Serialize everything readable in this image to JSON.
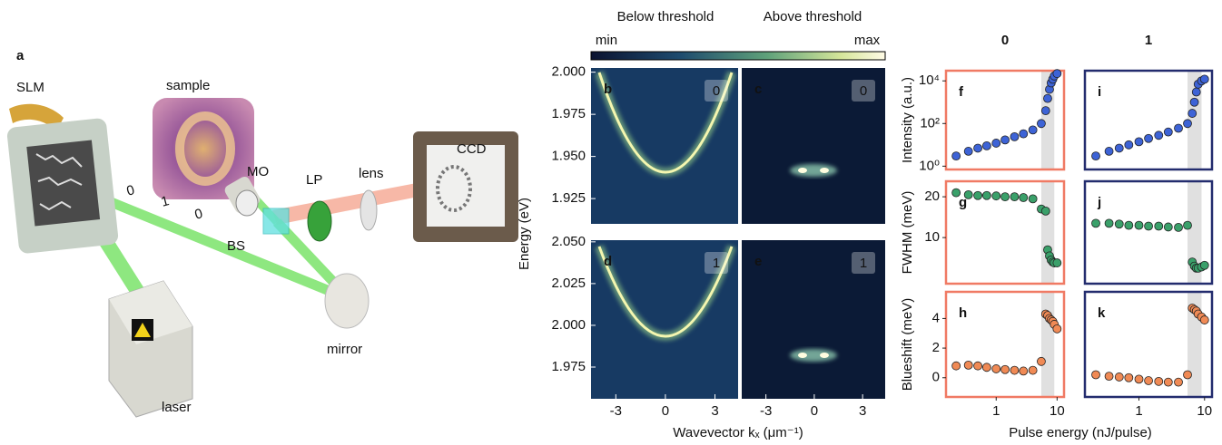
{
  "illustration": {
    "panel_label": "a",
    "labels": [
      "SLM",
      "sample",
      "MO",
      "LP",
      "lens",
      "CCD",
      "BS",
      "mirror",
      "laser"
    ],
    "digits": [
      "0",
      "1",
      "0"
    ]
  },
  "colorbar": {
    "left_title": "Below threshold",
    "right_title": "Above threshold",
    "min_label": "min",
    "max_label": "max"
  },
  "shared": {
    "energy_label": "Energy (eV)",
    "wavevector_label": "Wavevector kₓ (μm⁻¹)",
    "pulse_label": "Pulse energy (nJ/pulse)",
    "column_titles": [
      {
        "text": "0",
        "color": "#f07a64"
      },
      {
        "text": "1",
        "color": "#232c6e"
      }
    ]
  },
  "chart_data": [
    {
      "type": "heatmap",
      "panel": "b",
      "badge": "0",
      "badge_color": "#f07a64",
      "xlim": [
        -4.5,
        4.4
      ],
      "ylim": [
        1.91,
        2.0025
      ],
      "yticks": [
        {
          "value": 2.0,
          "label": "2.000"
        },
        {
          "value": 1.975,
          "label": "1.975"
        },
        {
          "value": 1.95,
          "label": "1.950"
        },
        {
          "value": 1.925,
          "label": "1.925"
        }
      ]
    },
    {
      "type": "heatmap",
      "panel": "c",
      "badge": "0",
      "badge_color": "#f07a64"
    },
    {
      "type": "heatmap",
      "panel": "d",
      "badge": "1",
      "badge_color": "#232c6e",
      "xlim": [
        -4.5,
        4.4
      ],
      "ylim": [
        1.956,
        2.051
      ],
      "yticks": [
        {
          "value": 2.05,
          "label": "2.050"
        },
        {
          "value": 2.025,
          "label": "2.025"
        },
        {
          "value": 2.0,
          "label": "2.000"
        },
        {
          "value": 1.975,
          "label": "1.975"
        }
      ],
      "xticks": [
        -3,
        0,
        3
      ]
    },
    {
      "type": "heatmap",
      "panel": "e",
      "badge": "1",
      "badge_color": "#232c6e",
      "xlim": [
        -4.5,
        4.4
      ],
      "xticks": [
        -3,
        0,
        3
      ]
    },
    {
      "type": "scatter",
      "panel": "f",
      "frame_color": "#f07a64",
      "color": "#3d63d6",
      "xscale": "log",
      "yscale": "log",
      "xlim": [
        0.15,
        13
      ],
      "ylim": [
        0.7,
        30000
      ],
      "shade": [
        5.5,
        9
      ],
      "ylabel": "Intensity (a.u.)",
      "yticks": [
        {
          "value": 1,
          "label": "10⁰"
        },
        {
          "value": 100,
          "label": "10²"
        },
        {
          "value": 10000,
          "label": "10⁴"
        }
      ],
      "x": [
        0.22,
        0.35,
        0.5,
        0.7,
        1.0,
        1.4,
        2.0,
        2.8,
        4.0,
        5.5,
        6.5,
        7.0,
        7.5,
        8.0,
        8.5,
        9.0,
        10.0
      ],
      "values": [
        3,
        5,
        7,
        9,
        12,
        17,
        24,
        33,
        50,
        100,
        400,
        1500,
        4000,
        8000,
        12000,
        17000,
        22000
      ]
    },
    {
      "type": "scatter",
      "panel": "g",
      "frame_color": "#f07a64",
      "color": "#3aa06a",
      "xscale": "log",
      "xlim": [
        0.15,
        13
      ],
      "ylim": [
        -1.3,
        23.8
      ],
      "shade": [
        5.5,
        9
      ],
      "ylabel": "FWHM (meV)",
      "yticks": [
        10,
        20
      ],
      "x": [
        0.22,
        0.35,
        0.5,
        0.7,
        1.0,
        1.4,
        2.0,
        2.8,
        4.0,
        5.5,
        6.5,
        7.0,
        7.5,
        8.0,
        8.5,
        9.0,
        10.0
      ],
      "values": [
        21,
        20.5,
        20.3,
        20.3,
        20.2,
        20,
        20,
        19.8,
        19.5,
        17,
        16.5,
        7,
        5.5,
        4.5,
        4,
        3.8,
        3.8
      ]
    },
    {
      "type": "scatter",
      "panel": "h",
      "frame_color": "#f07a64",
      "color": "#f08a55",
      "xscale": "log",
      "xlim": [
        0.15,
        13
      ],
      "ylim": [
        -1.3,
        5.8
      ],
      "shade": [
        5.5,
        9
      ],
      "ylabel": "Blueshift (meV)",
      "yticks": [
        0,
        2,
        4
      ],
      "xticks": [
        1,
        10
      ],
      "x": [
        0.22,
        0.35,
        0.5,
        0.7,
        1.0,
        1.4,
        2.0,
        2.8,
        4.0,
        5.5,
        6.5,
        7.0,
        7.5,
        8.0,
        8.5,
        9.0,
        10.0
      ],
      "values": [
        0.8,
        0.85,
        0.8,
        0.7,
        0.6,
        0.55,
        0.5,
        0.45,
        0.5,
        1.1,
        4.3,
        4.2,
        4.0,
        3.9,
        3.8,
        3.6,
        3.3
      ]
    },
    {
      "type": "scatter",
      "panel": "i",
      "frame_color": "#232c6e",
      "color": "#3d63d6",
      "xscale": "log",
      "yscale": "log",
      "xlim": [
        0.15,
        13
      ],
      "ylim": [
        0.7,
        30000
      ],
      "shade": [
        5.5,
        9
      ],
      "x": [
        0.22,
        0.35,
        0.5,
        0.7,
        1.0,
        1.4,
        2.0,
        2.8,
        4.0,
        5.5,
        6.5,
        7.0,
        7.5,
        8.0,
        9.0,
        10.0
      ],
      "values": [
        3,
        5,
        7,
        10,
        14,
        20,
        28,
        40,
        60,
        100,
        300,
        1000,
        3000,
        7000,
        10000,
        12000
      ]
    },
    {
      "type": "scatter",
      "panel": "j",
      "frame_color": "#232c6e",
      "color": "#3aa06a",
      "xscale": "log",
      "xlim": [
        0.15,
        13
      ],
      "ylim": [
        -1.3,
        23.8
      ],
      "shade": [
        5.5,
        9
      ],
      "x": [
        0.22,
        0.35,
        0.5,
        0.7,
        1.0,
        1.4,
        2.0,
        2.8,
        4.0,
        5.5,
        6.5,
        7.0,
        7.5,
        8.0,
        9.0,
        10.0
      ],
      "values": [
        13.5,
        13.5,
        13.3,
        13,
        13,
        12.8,
        12.8,
        12.6,
        12.5,
        13,
        4,
        3,
        2.5,
        2.5,
        2.8,
        3.2
      ]
    },
    {
      "type": "scatter",
      "panel": "k",
      "frame_color": "#232c6e",
      "color": "#f08a55",
      "xscale": "log",
      "xlim": [
        0.15,
        13
      ],
      "ylim": [
        -1.3,
        5.8
      ],
      "shade": [
        5.5,
        9
      ],
      "xticks": [
        1,
        10
      ],
      "x": [
        0.22,
        0.35,
        0.5,
        0.7,
        1.0,
        1.4,
        2.0,
        2.8,
        4.0,
        5.5,
        6.5,
        7.0,
        7.5,
        8.0,
        9.0,
        10.0
      ],
      "values": [
        0.2,
        0.1,
        0.05,
        0,
        -0.1,
        -0.2,
        -0.25,
        -0.3,
        -0.3,
        0.2,
        4.7,
        4.6,
        4.5,
        4.3,
        4.1,
        3.9
      ]
    }
  ]
}
